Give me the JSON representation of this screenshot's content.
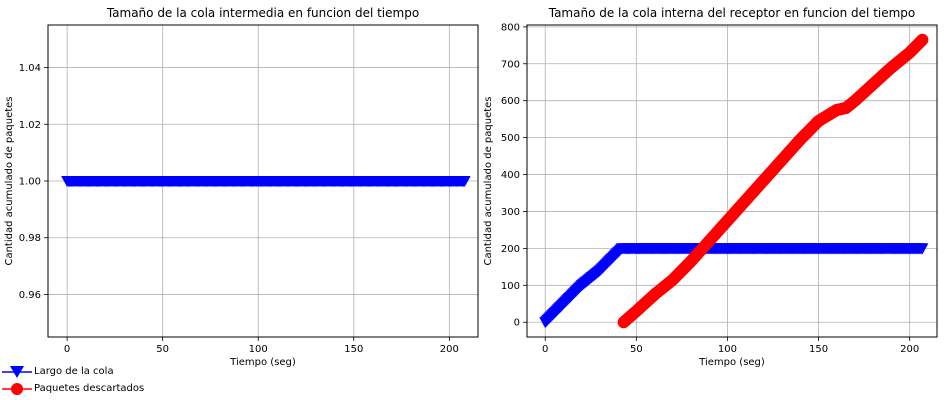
{
  "chart_data": [
    {
      "type": "scatter",
      "title": "Tamaño de la cola intermedia en funcion del tiempo",
      "xlabel": "Tiempo (seg)",
      "ylabel": "Cantidad acumulado de paquetes",
      "xlim": [
        -10,
        215
      ],
      "ylim": [
        0.945,
        1.055
      ],
      "xticks": [
        0,
        50,
        100,
        150,
        200
      ],
      "yticks": [
        0.96,
        0.98,
        1.0,
        1.02,
        1.04
      ],
      "ytick_labels": [
        "0.96",
        "0.98",
        "1.00",
        "1.02",
        "1.04"
      ],
      "grid": true,
      "series": [
        {
          "name": "Largo de la cola",
          "marker": "triangle-down",
          "color": "#0000ff",
          "x": [
            0,
            10,
            20,
            30,
            40,
            50,
            60,
            70,
            80,
            90,
            100,
            110,
            120,
            130,
            140,
            150,
            160,
            170,
            180,
            190,
            200,
            208
          ],
          "y": [
            1,
            1,
            1,
            1,
            1,
            1,
            1,
            1,
            1,
            1,
            1,
            1,
            1,
            1,
            1,
            1,
            1,
            1,
            1,
            1,
            1,
            1
          ]
        }
      ]
    },
    {
      "type": "scatter",
      "title": "Tamaño de la cola interna del receptor en funcion del tiempo",
      "xlabel": "Tiempo (seg)",
      "ylabel": "Cantidad acumulado de paquetes",
      "xlim": [
        -10,
        215
      ],
      "ylim": [
        -40,
        805
      ],
      "xticks": [
        0,
        50,
        100,
        150,
        200
      ],
      "yticks": [
        0,
        100,
        200,
        300,
        400,
        500,
        600,
        700,
        800
      ],
      "ytick_labels": [
        "0",
        "100",
        "200",
        "300",
        "400",
        "500",
        "600",
        "700",
        "800"
      ],
      "grid": true,
      "series": [
        {
          "name": "Largo de la cola",
          "marker": "triangle-down",
          "color": "#0000ff",
          "x": [
            0,
            5,
            10,
            15,
            20,
            25,
            30,
            35,
            40,
            42,
            50,
            75,
            100,
            125,
            150,
            175,
            200,
            207
          ],
          "y": [
            0,
            25,
            50,
            75,
            100,
            120,
            140,
            165,
            190,
            200,
            200,
            200,
            200,
            200,
            200,
            200,
            200,
            200
          ]
        },
        {
          "name": "Paquetes descartados",
          "marker": "circle",
          "color": "#ff0000",
          "x": [
            43,
            50,
            60,
            70,
            80,
            90,
            100,
            110,
            120,
            130,
            140,
            150,
            160,
            165,
            170,
            180,
            190,
            200,
            207
          ],
          "y": [
            0,
            30,
            75,
            115,
            165,
            220,
            275,
            330,
            385,
            440,
            495,
            545,
            575,
            580,
            600,
            645,
            690,
            730,
            765
          ]
        }
      ]
    }
  ],
  "legend": {
    "placement": "bottom-left",
    "items": [
      {
        "label": "Largo de la cola",
        "marker": "triangle-down",
        "color": "#0000ff"
      },
      {
        "label": "Paquetes descartados",
        "marker": "circle",
        "color": "#ff0000"
      }
    ]
  }
}
